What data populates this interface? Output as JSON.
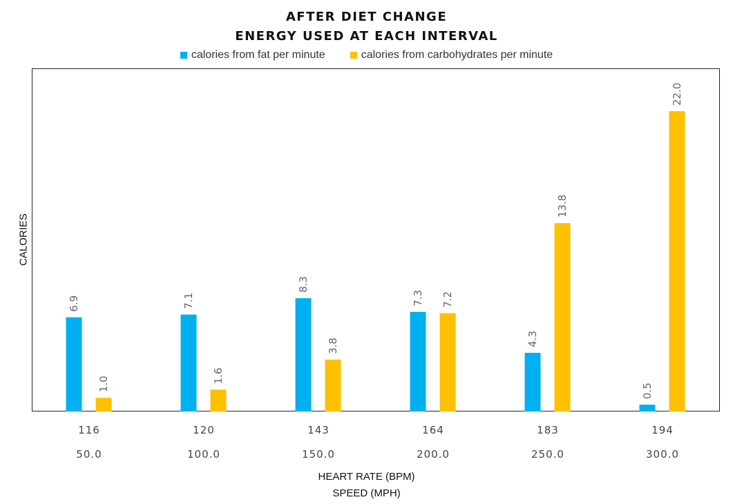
{
  "chart_data": {
    "type": "bar",
    "title": "AFTER DIET CHANGE",
    "subtitle": "ENERGY USED AT EACH INTERVAL",
    "xlabel": "HEART RATE (BPM)",
    "xlabel_secondary": "SPEED (MPH)",
    "ylabel": "CALORIES",
    "categories": [
      "116",
      "120",
      "143",
      "164",
      "183",
      "194"
    ],
    "categories_secondary": [
      "50.0",
      "100.0",
      "150.0",
      "200.0",
      "250.0",
      "300.0"
    ],
    "series": [
      {
        "name": "calories from fat per minute",
        "color": "#00B0F0",
        "values": [
          6.9,
          7.1,
          8.3,
          7.3,
          4.3,
          0.5
        ]
      },
      {
        "name": "calories from carbohydrates per minute",
        "color": "#FFC000",
        "values": [
          1.0,
          1.6,
          3.8,
          7.2,
          13.8,
          22.0
        ]
      }
    ],
    "ylim": [
      0,
      25
    ],
    "grid": false,
    "legend": "top-center"
  }
}
